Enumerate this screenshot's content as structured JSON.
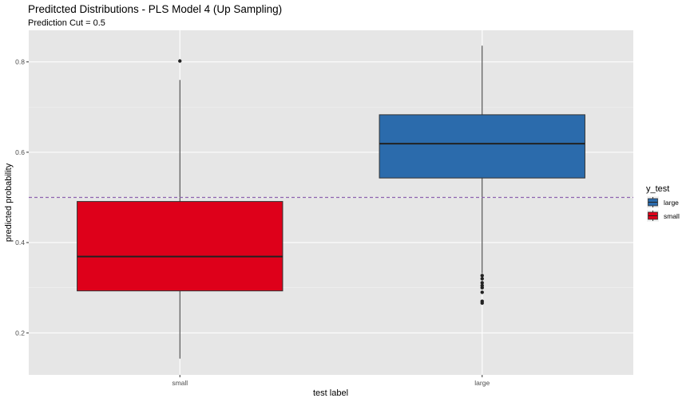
{
  "chart_data": {
    "type": "boxplot",
    "title": "Preditcted Distributions - PLS Model 4 (Up Sampling)",
    "subtitle": "Prediction Cut = 0.5",
    "xlabel": "test label",
    "ylabel": "predicted probability",
    "categories": [
      "small",
      "large"
    ],
    "ylim": [
      0.107,
      0.87
    ],
    "yticks": [
      0.2,
      0.4,
      0.6,
      0.8
    ],
    "ytick_labels": [
      "0.2",
      "0.4",
      "0.6",
      "0.8"
    ],
    "grid": true,
    "reference_line": {
      "y": 0.5,
      "style": "dashed",
      "color": "#8E63B0"
    },
    "legend": {
      "title": "y_test",
      "position": "right",
      "entries": [
        {
          "label": "large",
          "color": "#2B6BAC"
        },
        {
          "label": "small",
          "color": "#DE001A"
        }
      ]
    },
    "boxes": [
      {
        "category": "small",
        "fill": "#DE001A",
        "min": 0.143,
        "q1": 0.293,
        "median": 0.369,
        "q3": 0.491,
        "max": 0.76,
        "outliers": [
          0.802
        ]
      },
      {
        "category": "large",
        "fill": "#2B6BAC",
        "min": 0.332,
        "q1": 0.543,
        "median": 0.619,
        "q3": 0.683,
        "max": 0.836,
        "outliers": [
          0.327,
          0.32,
          0.311,
          0.305,
          0.3,
          0.29,
          0.27,
          0.266
        ]
      }
    ]
  }
}
